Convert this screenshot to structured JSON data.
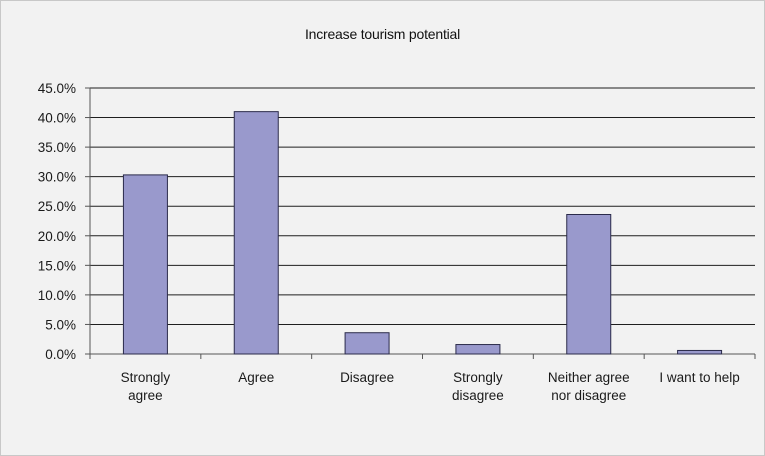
{
  "chart_data": {
    "type": "bar",
    "title": "Increase tourism potential",
    "xlabel": "",
    "ylabel": "",
    "categories": [
      [
        "Strongly",
        "agree"
      ],
      [
        "Agree"
      ],
      [
        "Disagree"
      ],
      [
        "Strongly",
        "disagree"
      ],
      [
        "Neither agree",
        "nor disagree"
      ],
      [
        "I want to help"
      ]
    ],
    "values": [
      30.3,
      41.0,
      3.6,
      1.6,
      23.6,
      0.6
    ],
    "ylim": [
      0,
      45
    ],
    "yticks": [
      "0.0%",
      "5.0%",
      "10.0%",
      "15.0%",
      "20.0%",
      "25.0%",
      "30.0%",
      "35.0%",
      "40.0%",
      "45.0%"
    ],
    "grid": true,
    "legend": "none",
    "colors": {
      "bar_fill": "#9999cc",
      "bar_stroke": "#2a2a4a",
      "grid": "#1f1f1f",
      "background": "#f2f2f2"
    }
  }
}
